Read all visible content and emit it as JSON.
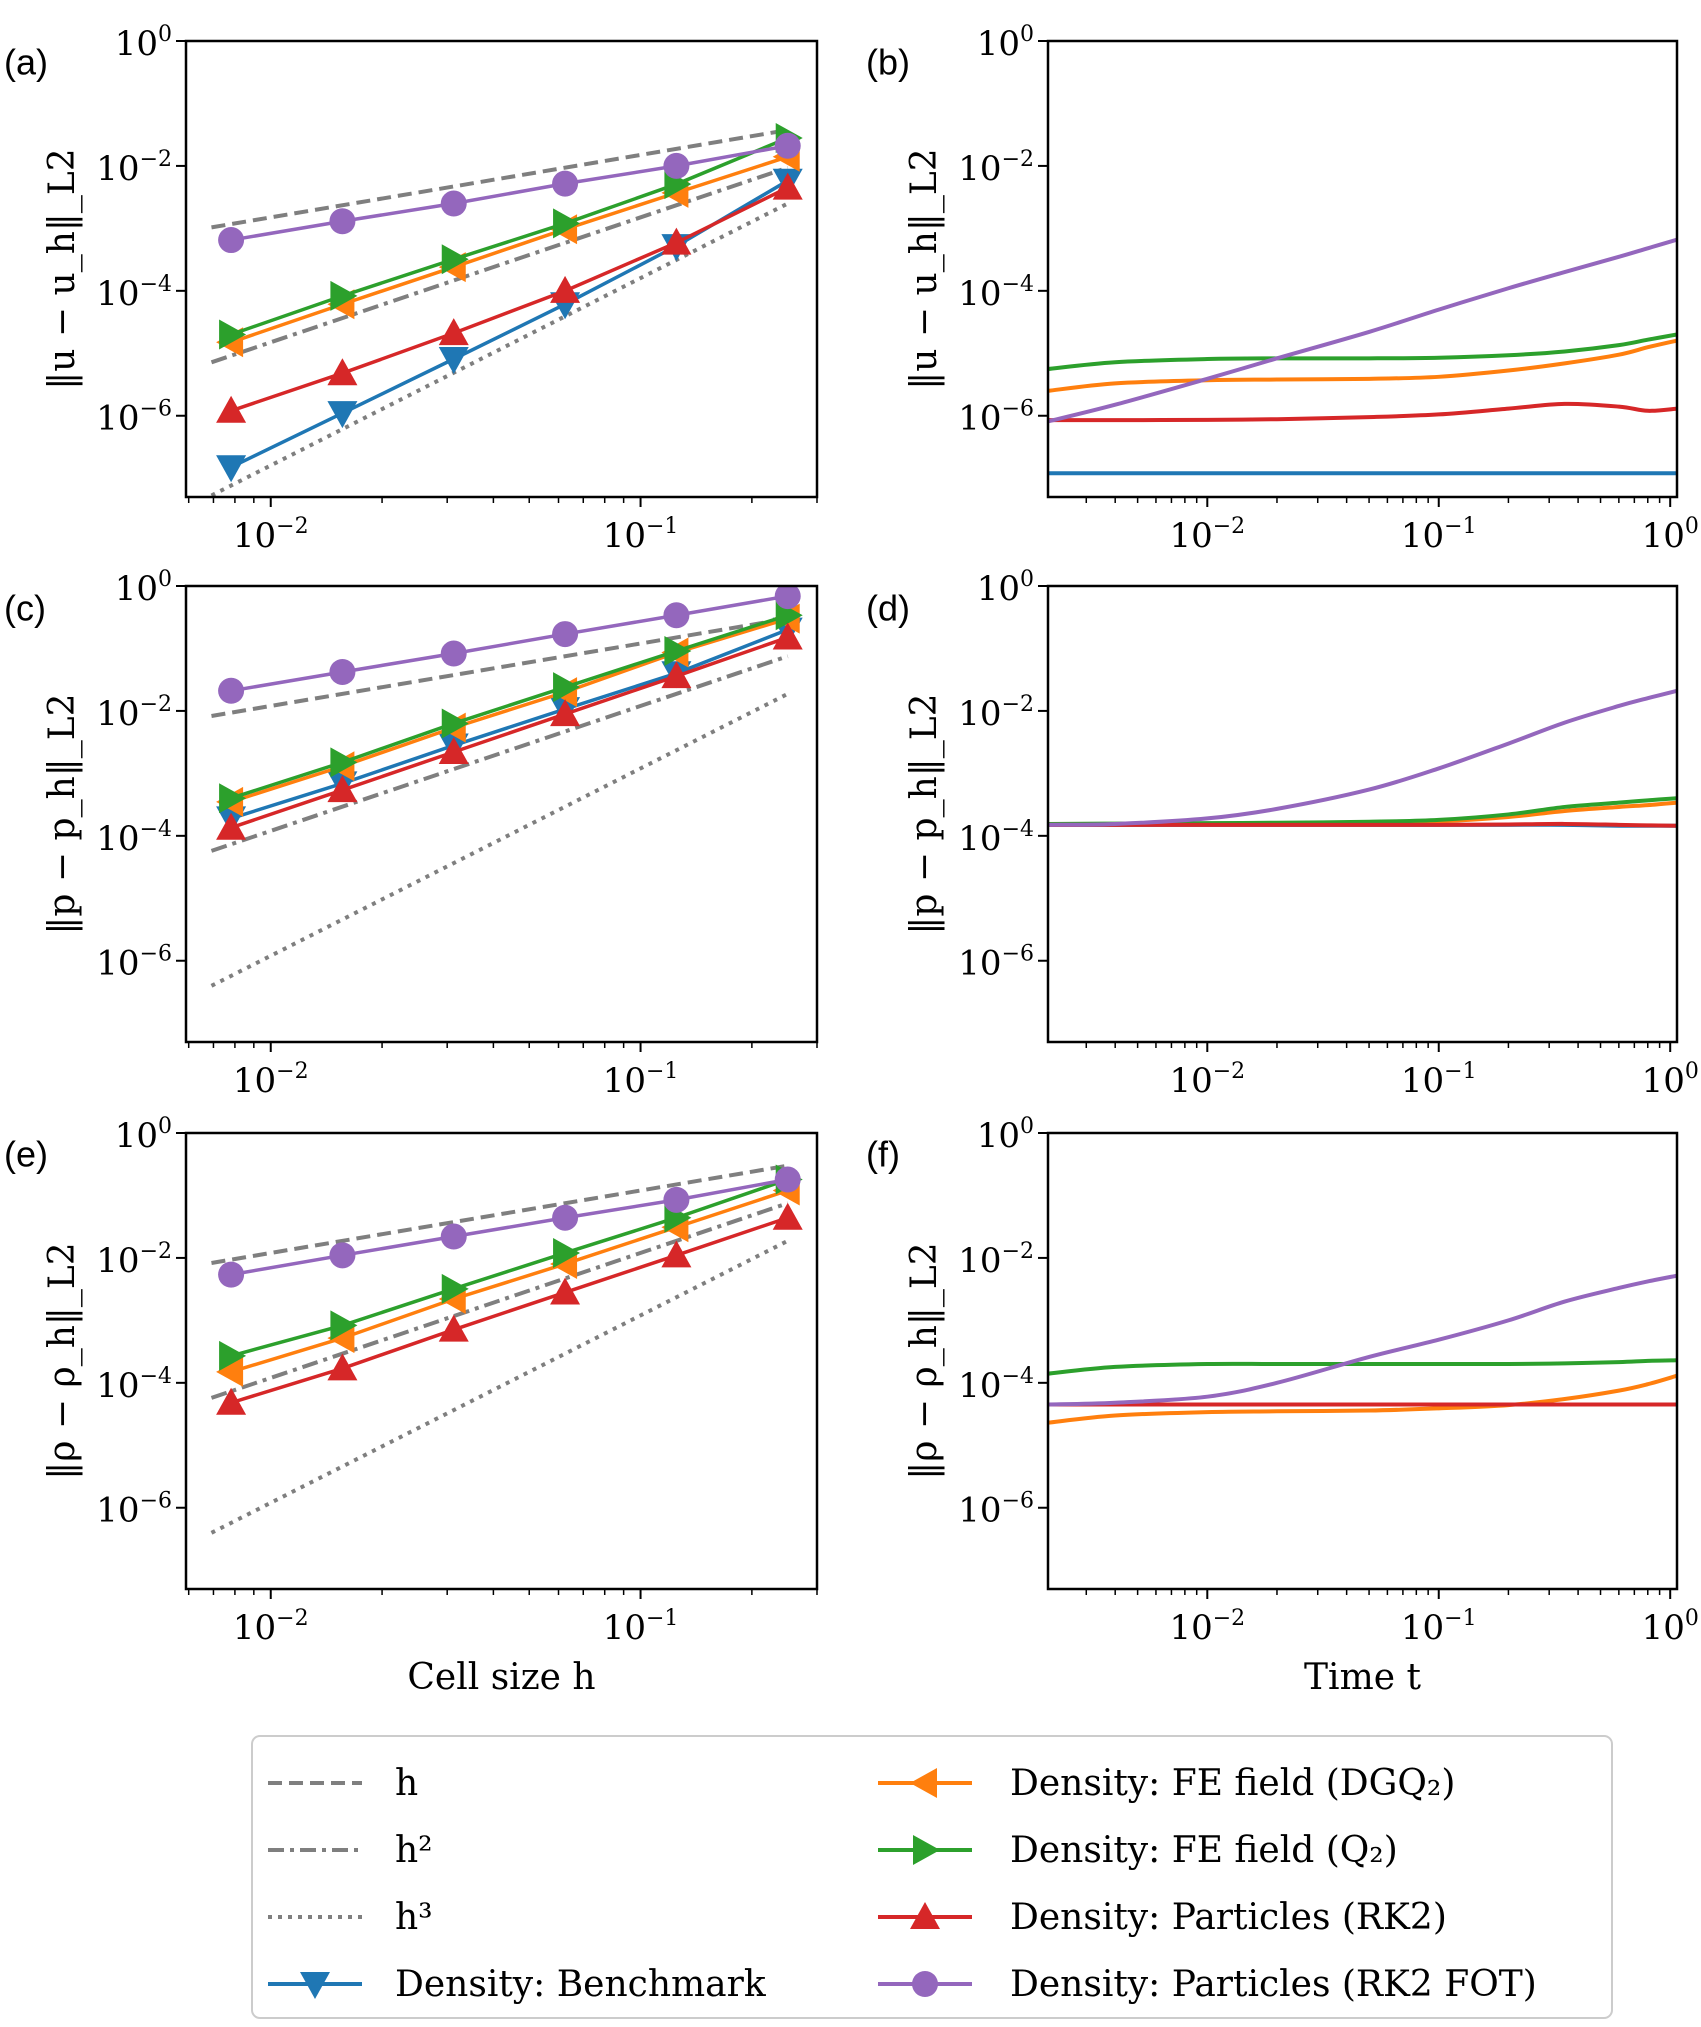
{
  "figure": {
    "legend": [
      {
        "key": "ref_h",
        "label": "h",
        "color": "#7f7f7f",
        "style": "dashed",
        "marker": "none"
      },
      {
        "key": "ref_h2",
        "label": "h²",
        "color": "#7f7f7f",
        "style": "dashdot",
        "marker": "none"
      },
      {
        "key": "ref_h3",
        "label": "h³",
        "color": "#7f7f7f",
        "style": "dotted",
        "marker": "none"
      },
      {
        "key": "benchmark",
        "label": "Density: Benchmark",
        "color": "#1f77b4",
        "style": "solid",
        "marker": "triangle-down"
      },
      {
        "key": "dgq2",
        "label": "Density: FE field (DGQ₂)",
        "color": "#ff7f0e",
        "style": "solid",
        "marker": "triangle-left"
      },
      {
        "key": "q2",
        "label": "Density: FE field (Q₂)",
        "color": "#2ca02c",
        "style": "solid",
        "marker": "triangle-right"
      },
      {
        "key": "rk2",
        "label": "Density: Particles (RK2)",
        "color": "#d62728",
        "style": "solid",
        "marker": "triangle-up"
      },
      {
        "key": "rk2fot",
        "label": "Density: Particles (RK2 FOT)",
        "color": "#9467bd",
        "style": "solid",
        "marker": "circle"
      }
    ]
  },
  "chart_data": [
    {
      "panel": "(a)",
      "type": "line",
      "xscale": "log",
      "yscale": "log",
      "xlabel": "",
      "ylabel": "‖u − u_h‖_L2",
      "xlim": [
        0.0059,
        0.3
      ],
      "ylim": [
        5e-08,
        1
      ],
      "xticks": [
        {
          "v": 0.01,
          "b": "10",
          "e": "−2"
        },
        {
          "v": 0.1,
          "b": "10",
          "e": "−1"
        }
      ],
      "yticks": [
        {
          "v": 1,
          "b": "10",
          "e": "0"
        },
        {
          "v": 0.01,
          "b": "10",
          "e": "−2"
        },
        {
          "v": 0.0001,
          "b": "10",
          "e": "−4"
        },
        {
          "v": 1e-06,
          "b": "10",
          "e": "−6"
        }
      ],
      "x": [
        0.0078125,
        0.015625,
        0.03125,
        0.0625,
        0.125,
        0.25
      ],
      "references": [
        {
          "key": "ref_h",
          "coef": 0.15,
          "order": 1
        },
        {
          "key": "ref_h2",
          "coef": 0.15,
          "order": 2
        },
        {
          "key": "ref_h3",
          "coef": 0.16,
          "order": 3
        }
      ],
      "series": [
        {
          "key": "benchmark",
          "values": [
            1.5e-07,
            1.1e-06,
            8.1e-06,
            6.1e-05,
            0.00052,
            0.0058
          ]
        },
        {
          "key": "dgq2",
          "values": [
            1.5e-05,
            6.1e-05,
            0.00024,
            0.00097,
            0.0037,
            0.014
          ]
        },
        {
          "key": "q2",
          "values": [
            2e-05,
            8.3e-05,
            0.00032,
            0.0012,
            0.0051,
            0.028
          ]
        },
        {
          "key": "rk2",
          "values": [
            1.2e-06,
            4.8e-06,
            2.1e-05,
            0.0001,
            0.00059,
            0.0045
          ]
        },
        {
          "key": "rk2fot",
          "values": [
            0.00065,
            0.0013,
            0.0025,
            0.0052,
            0.01,
            0.021
          ]
        }
      ]
    },
    {
      "panel": "(b)",
      "type": "line",
      "xscale": "log",
      "yscale": "log",
      "xlabel": "",
      "ylabel": "‖u − u_h‖_L2",
      "xlim": [
        0.00205,
        1.07
      ],
      "ylim": [
        5e-08,
        1
      ],
      "xticks": [
        {
          "v": 0.01,
          "b": "10",
          "e": "−2"
        },
        {
          "v": 0.1,
          "b": "10",
          "e": "−1"
        },
        {
          "v": 1,
          "b": "10",
          "e": "0"
        }
      ],
      "yticks": [
        {
          "v": 1,
          "b": "10",
          "e": "0"
        },
        {
          "v": 0.01,
          "b": "10",
          "e": "−2"
        },
        {
          "v": 0.0001,
          "b": "10",
          "e": "−4"
        },
        {
          "v": 1e-06,
          "b": "10",
          "e": "−6"
        }
      ],
      "x": [
        0.00205,
        0.004,
        0.01,
        0.02,
        0.05,
        0.1,
        0.2,
        0.35,
        0.6,
        0.8,
        1.07
      ],
      "series": [
        {
          "key": "benchmark",
          "values": [
            1.2e-07,
            1.2e-07,
            1.2e-07,
            1.2e-07,
            1.2e-07,
            1.2e-07,
            1.2e-07,
            1.2e-07,
            1.2e-07,
            1.2e-07,
            1.2e-07
          ]
        },
        {
          "key": "dgq2",
          "values": [
            2.5e-06,
            3.3e-06,
            3.7e-06,
            3.8e-06,
            3.9e-06,
            4.2e-06,
            5.3e-06,
            6.9e-06,
            9.5e-06,
            1.25e-05,
            1.6e-05
          ]
        },
        {
          "key": "q2",
          "values": [
            5.6e-06,
            7.2e-06,
            8.1e-06,
            8.3e-06,
            8.3e-06,
            8.5e-06,
            9.3e-06,
            1.07e-05,
            1.35e-05,
            1.65e-05,
            2e-05
          ]
        },
        {
          "key": "rk2",
          "values": [
            8.5e-07,
            8.5e-07,
            8.6e-07,
            8.8e-07,
            9.5e-07,
            1.05e-06,
            1.3e-06,
            1.55e-06,
            1.4e-06,
            1.2e-06,
            1.3e-06
          ]
        },
        {
          "key": "rk2fot",
          "values": [
            8.1e-07,
            1.5e-06,
            3.9e-06,
            8.3e-06,
            2.2e-05,
            5e-05,
            0.00011,
            0.0002,
            0.00035,
            0.00048,
            0.00066
          ]
        }
      ]
    },
    {
      "panel": "(c)",
      "type": "line",
      "xscale": "log",
      "yscale": "log",
      "xlabel": "",
      "ylabel": "‖p − p_h‖_L2",
      "xlim": [
        0.0059,
        0.3
      ],
      "ylim": [
        5e-08,
        1
      ],
      "xticks": [
        {
          "v": 0.01,
          "b": "10",
          "e": "−2"
        },
        {
          "v": 0.1,
          "b": "10",
          "e": "−1"
        }
      ],
      "yticks": [
        {
          "v": 1,
          "b": "10",
          "e": "0"
        },
        {
          "v": 0.01,
          "b": "10",
          "e": "−2"
        },
        {
          "v": 0.0001,
          "b": "10",
          "e": "−4"
        },
        {
          "v": 1e-06,
          "b": "10",
          "e": "−6"
        }
      ],
      "x": [
        0.0078125,
        0.015625,
        0.03125,
        0.0625,
        0.125,
        0.25
      ],
      "references": [
        {
          "key": "ref_h",
          "coef": 1.2,
          "order": 1
        },
        {
          "key": "ref_h2",
          "coef": 1.2,
          "order": 2
        },
        {
          "key": "ref_h3",
          "coef": 1.2,
          "order": 3
        }
      ],
      "series": [
        {
          "key": "benchmark",
          "values": [
            0.00019,
            0.00069,
            0.0028,
            0.0107,
            0.04,
            0.2
          ]
        },
        {
          "key": "dgq2",
          "values": [
            0.00035,
            0.0013,
            0.0054,
            0.02,
            0.086,
            0.3
          ]
        },
        {
          "key": "q2",
          "values": [
            0.0004,
            0.0015,
            0.0063,
            0.024,
            0.091,
            0.34
          ]
        },
        {
          "key": "rk2",
          "values": [
            0.000135,
            0.00054,
            0.0022,
            0.0089,
            0.036,
            0.15
          ]
        },
        {
          "key": "rk2fot",
          "values": [
            0.021,
            0.042,
            0.083,
            0.17,
            0.34,
            0.69
          ]
        }
      ]
    },
    {
      "panel": "(d)",
      "type": "line",
      "xscale": "log",
      "yscale": "log",
      "xlabel": "",
      "ylabel": "‖p − p_h‖_L2",
      "xlim": [
        0.00205,
        1.07
      ],
      "ylim": [
        5e-08,
        1
      ],
      "xticks": [
        {
          "v": 0.01,
          "b": "10",
          "e": "−2"
        },
        {
          "v": 0.1,
          "b": "10",
          "e": "−1"
        },
        {
          "v": 1,
          "b": "10",
          "e": "0"
        }
      ],
      "yticks": [
        {
          "v": 1,
          "b": "10",
          "e": "0"
        },
        {
          "v": 0.01,
          "b": "10",
          "e": "−2"
        },
        {
          "v": 0.0001,
          "b": "10",
          "e": "−4"
        },
        {
          "v": 1e-06,
          "b": "10",
          "e": "−6"
        }
      ],
      "x": [
        0.00205,
        0.004,
        0.01,
        0.02,
        0.05,
        0.1,
        0.2,
        0.35,
        0.6,
        0.8,
        1.07
      ],
      "series": [
        {
          "key": "benchmark",
          "values": [
            0.00015,
            0.00015,
            0.00015,
            0.00015,
            0.00015,
            0.00015,
            0.00015,
            0.00015,
            0.000145,
            0.000145,
            0.000145
          ]
        },
        {
          "key": "dgq2",
          "values": [
            0.00015,
            0.000152,
            0.000155,
            0.000157,
            0.000162,
            0.00017,
            0.0002,
            0.00025,
            0.00029,
            0.00031,
            0.00034
          ]
        },
        {
          "key": "q2",
          "values": [
            0.000155,
            0.000157,
            0.00016,
            0.000162,
            0.000168,
            0.00018,
            0.00022,
            0.00029,
            0.00034,
            0.00037,
            0.0004
          ]
        },
        {
          "key": "rk2",
          "values": [
            0.00015,
            0.00015,
            0.00015,
            0.00015,
            0.00015,
            0.00015,
            0.000152,
            0.000155,
            0.00015,
            0.000147,
            0.000145
          ]
        },
        {
          "key": "rk2fot",
          "values": [
            0.00015,
            0.000155,
            0.00019,
            0.00027,
            0.00055,
            0.0012,
            0.003,
            0.0065,
            0.012,
            0.016,
            0.021
          ]
        }
      ]
    },
    {
      "panel": "(e)",
      "type": "line",
      "xscale": "log",
      "yscale": "log",
      "xlabel": "Cell size h",
      "ylabel": "‖ρ − ρ_h‖_L2",
      "xlim": [
        0.0059,
        0.3
      ],
      "ylim": [
        5e-08,
        1
      ],
      "xticks": [
        {
          "v": 0.01,
          "b": "10",
          "e": "−2"
        },
        {
          "v": 0.1,
          "b": "10",
          "e": "−1"
        }
      ],
      "yticks": [
        {
          "v": 1,
          "b": "10",
          "e": "0"
        },
        {
          "v": 0.01,
          "b": "10",
          "e": "−2"
        },
        {
          "v": 0.0001,
          "b": "10",
          "e": "−4"
        },
        {
          "v": 1e-06,
          "b": "10",
          "e": "−6"
        }
      ],
      "x": [
        0.0078125,
        0.015625,
        0.03125,
        0.0625,
        0.125,
        0.25
      ],
      "references": [
        {
          "key": "ref_h",
          "coef": 1.2,
          "order": 1
        },
        {
          "key": "ref_h2",
          "coef": 1.2,
          "order": 2
        },
        {
          "key": "ref_h3",
          "coef": 1.2,
          "order": 3
        }
      ],
      "series": [
        {
          "key": "dgq2",
          "values": [
            0.00015,
            0.00052,
            0.0022,
            0.008,
            0.031,
            0.12
          ]
        },
        {
          "key": "q2",
          "values": [
            0.00027,
            0.00083,
            0.0032,
            0.012,
            0.044,
            0.18
          ]
        },
        {
          "key": "rk2",
          "values": [
            4.8e-05,
            0.00017,
            0.00071,
            0.0028,
            0.011,
            0.044
          ]
        },
        {
          "key": "rk2fot",
          "values": [
            0.0054,
            0.011,
            0.022,
            0.044,
            0.085,
            0.18
          ]
        }
      ]
    },
    {
      "panel": "(f)",
      "type": "line",
      "xscale": "log",
      "yscale": "log",
      "xlabel": "Time t",
      "ylabel": "‖ρ − ρ_h‖_L2",
      "xlim": [
        0.00205,
        1.07
      ],
      "ylim": [
        5e-08,
        1
      ],
      "xticks": [
        {
          "v": 0.01,
          "b": "10",
          "e": "−2"
        },
        {
          "v": 0.1,
          "b": "10",
          "e": "−1"
        },
        {
          "v": 1,
          "b": "10",
          "e": "0"
        }
      ],
      "yticks": [
        {
          "v": 1,
          "b": "10",
          "e": "0"
        },
        {
          "v": 0.01,
          "b": "10",
          "e": "−2"
        },
        {
          "v": 0.0001,
          "b": "10",
          "e": "−4"
        },
        {
          "v": 1e-06,
          "b": "10",
          "e": "−6"
        }
      ],
      "x": [
        0.00205,
        0.004,
        0.01,
        0.02,
        0.05,
        0.1,
        0.2,
        0.35,
        0.6,
        0.8,
        1.07
      ],
      "series": [
        {
          "key": "dgq2",
          "values": [
            2.3e-05,
            3e-05,
            3.4e-05,
            3.5e-05,
            3.6e-05,
            3.9e-05,
            4.4e-05,
            5.5e-05,
            7.5e-05,
            9.5e-05,
            0.00013
          ]
        },
        {
          "key": "q2",
          "values": [
            0.00014,
            0.00018,
            0.0002,
            0.0002,
            0.0002,
            0.0002,
            0.0002,
            0.000205,
            0.000215,
            0.000225,
            0.00023
          ]
        },
        {
          "key": "rk2",
          "values": [
            4.5e-05,
            4.5e-05,
            4.5e-05,
            4.5e-05,
            4.5e-05,
            4.5e-05,
            4.5e-05,
            4.5e-05,
            4.5e-05,
            4.5e-05,
            4.5e-05
          ]
        },
        {
          "key": "rk2fot",
          "values": [
            4.5e-05,
            4.8e-05,
            6e-05,
            0.0001,
            0.00026,
            0.00049,
            0.001,
            0.002,
            0.0033,
            0.0042,
            0.0052
          ]
        }
      ]
    }
  ]
}
